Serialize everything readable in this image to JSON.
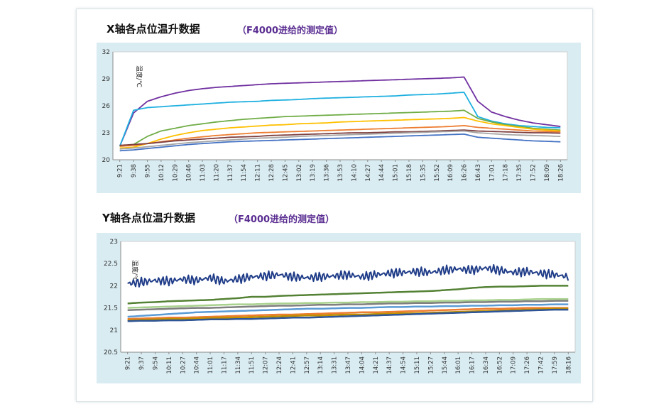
{
  "chart_data": [
    {
      "type": "line",
      "title": "X轴各点位温升数据",
      "subtitle": "（F4000进给的测定值）",
      "ylabel": "温度/℃",
      "xlabel": "",
      "ylim": [
        20,
        32
      ],
      "yticks": [
        "20",
        "23",
        "26",
        "29",
        "32"
      ],
      "grid": false,
      "legend": "none",
      "x": [
        "9:21",
        "9:38",
        "9:55",
        "10:12",
        "10:29",
        "10:46",
        "11:03",
        "11:20",
        "11:37",
        "11:54",
        "12:11",
        "12:28",
        "12:45",
        "13:02",
        "13:19",
        "13:36",
        "13:53",
        "14:10",
        "14:27",
        "14:44",
        "15:01",
        "15:18",
        "15:35",
        "15:52",
        "16:09",
        "16:26",
        "16:43",
        "17:01",
        "17:18",
        "17:35",
        "17:52",
        "18:09",
        "18:26"
      ],
      "series": [
        {
          "color": "#7030a0",
          "values": [
            21.5,
            25.2,
            26.5,
            27.0,
            27.4,
            27.7,
            27.9,
            28.05,
            28.15,
            28.25,
            28.35,
            28.45,
            28.5,
            28.55,
            28.6,
            28.65,
            28.7,
            28.75,
            28.8,
            28.85,
            28.9,
            28.95,
            29.0,
            29.05,
            29.1,
            29.2,
            26.5,
            25.3,
            24.8,
            24.4,
            24.1,
            23.9,
            23.7
          ]
        },
        {
          "color": "#1fb0e0",
          "values": [
            21.5,
            25.5,
            25.8,
            25.9,
            26.0,
            26.1,
            26.2,
            26.3,
            26.4,
            26.45,
            26.5,
            26.6,
            26.65,
            26.7,
            26.8,
            26.85,
            26.9,
            26.95,
            27.0,
            27.05,
            27.1,
            27.2,
            27.25,
            27.3,
            27.4,
            27.5,
            24.8,
            24.3,
            24.0,
            23.8,
            23.7,
            23.6,
            23.55
          ]
        },
        {
          "color": "#70ad47",
          "values": [
            21.5,
            21.7,
            22.6,
            23.2,
            23.5,
            23.8,
            24.0,
            24.2,
            24.35,
            24.5,
            24.6,
            24.7,
            24.8,
            24.85,
            24.9,
            24.95,
            25.0,
            25.05,
            25.1,
            25.15,
            25.2,
            25.25,
            25.3,
            25.35,
            25.4,
            25.5,
            24.6,
            24.2,
            23.9,
            23.7,
            23.5,
            23.4,
            23.3
          ]
        },
        {
          "color": "#ffc000",
          "values": [
            21.3,
            21.4,
            21.8,
            22.3,
            22.7,
            23.0,
            23.25,
            23.4,
            23.55,
            23.65,
            23.75,
            23.85,
            23.9,
            24.0,
            24.05,
            24.1,
            24.2,
            24.25,
            24.3,
            24.35,
            24.4,
            24.45,
            24.5,
            24.55,
            24.6,
            24.7,
            24.3,
            24.0,
            23.8,
            23.6,
            23.4,
            23.3,
            23.2
          ]
        },
        {
          "color": "#ed7d31",
          "values": [
            21.5,
            21.6,
            21.8,
            22.0,
            22.2,
            22.4,
            22.55,
            22.7,
            22.8,
            22.9,
            23.0,
            23.05,
            23.1,
            23.15,
            23.2,
            23.25,
            23.3,
            23.35,
            23.4,
            23.45,
            23.5,
            23.55,
            23.6,
            23.65,
            23.7,
            23.8,
            23.6,
            23.5,
            23.4,
            23.3,
            23.2,
            23.15,
            23.1
          ]
        },
        {
          "color": "#7f3f3f",
          "values": [
            21.6,
            21.7,
            21.8,
            21.95,
            22.1,
            22.2,
            22.3,
            22.4,
            22.5,
            22.55,
            22.6,
            22.7,
            22.75,
            22.8,
            22.85,
            22.9,
            22.95,
            23.0,
            23.0,
            23.05,
            23.1,
            23.1,
            23.15,
            23.2,
            23.25,
            23.3,
            23.2,
            23.15,
            23.1,
            23.05,
            23.0,
            23.0,
            22.95
          ]
        },
        {
          "color": "#a5a5a5",
          "values": [
            21.2,
            21.3,
            21.45,
            21.6,
            21.75,
            21.9,
            22.0,
            22.1,
            22.2,
            22.3,
            22.4,
            22.45,
            22.5,
            22.6,
            22.65,
            22.7,
            22.75,
            22.8,
            22.85,
            22.9,
            22.95,
            23.0,
            23.05,
            23.1,
            23.15,
            23.2,
            23.0,
            22.9,
            22.8,
            22.75,
            22.7,
            22.65,
            22.6
          ]
        },
        {
          "color": "#4472c4",
          "values": [
            21.0,
            21.1,
            21.25,
            21.4,
            21.55,
            21.7,
            21.8,
            21.9,
            22.0,
            22.05,
            22.1,
            22.15,
            22.2,
            22.25,
            22.3,
            22.35,
            22.4,
            22.45,
            22.5,
            22.55,
            22.6,
            22.65,
            22.7,
            22.75,
            22.8,
            22.85,
            22.5,
            22.4,
            22.3,
            22.2,
            22.1,
            22.05,
            22.0
          ]
        }
      ]
    },
    {
      "type": "line",
      "title": "Y轴各点位温升数据",
      "subtitle": "（F4000进给的测定值）",
      "ylabel": "温度/℃",
      "xlabel": "",
      "ylim": [
        20.5,
        23
      ],
      "yticks": [
        "20.5",
        "21",
        "21.5",
        "22",
        "22.5",
        "23"
      ],
      "grid": false,
      "legend": "none",
      "x": [
        "9:21",
        "9:37",
        "9:54",
        "10:11",
        "10:27",
        "10:44",
        "11:01",
        "11:17",
        "11:34",
        "11:51",
        "12:07",
        "12:24",
        "12:41",
        "12:57",
        "13:14",
        "13:31",
        "13:47",
        "14:04",
        "14:21",
        "14:37",
        "14:54",
        "15:11",
        "15:27",
        "15:44",
        "16:01",
        "16:17",
        "16:34",
        "16:52",
        "17:09",
        "17:26",
        "17:42",
        "17:59",
        "18:16"
      ],
      "series": [
        {
          "color": "#1f3c88",
          "values": [
            22.05,
            22.08,
            22.12,
            22.1,
            22.15,
            22.12,
            22.18,
            22.1,
            22.15,
            22.2,
            22.22,
            22.25,
            22.2,
            22.18,
            22.2,
            22.22,
            22.25,
            22.2,
            22.25,
            22.28,
            22.3,
            22.32,
            22.3,
            22.35,
            22.38,
            22.35,
            22.4,
            22.35,
            22.3,
            22.32,
            22.28,
            22.25,
            22.2
          ]
        },
        {
          "color": "#548235",
          "values": [
            21.6,
            21.62,
            21.63,
            21.65,
            21.66,
            21.67,
            21.68,
            21.7,
            21.72,
            21.75,
            21.75,
            21.77,
            21.78,
            21.79,
            21.8,
            21.81,
            21.82,
            21.83,
            21.84,
            21.85,
            21.86,
            21.87,
            21.88,
            21.9,
            21.92,
            21.95,
            21.97,
            21.98,
            21.98,
            21.99,
            22.0,
            22.0,
            22.0
          ]
        },
        {
          "color": "#a9d18e",
          "values": [
            21.5,
            21.51,
            21.52,
            21.53,
            21.54,
            21.55,
            21.56,
            21.57,
            21.58,
            21.58,
            21.59,
            21.6,
            21.6,
            21.61,
            21.61,
            21.62,
            21.62,
            21.63,
            21.63,
            21.64,
            21.64,
            21.65,
            21.65,
            21.66,
            21.66,
            21.67,
            21.67,
            21.68,
            21.68,
            21.69,
            21.7,
            21.7,
            21.7
          ]
        },
        {
          "color": "#7f7f7f",
          "values": [
            21.45,
            21.46,
            21.47,
            21.48,
            21.49,
            21.5,
            21.5,
            21.51,
            21.52,
            21.53,
            21.54,
            21.55,
            21.55,
            21.56,
            21.57,
            21.57,
            21.58,
            21.58,
            21.59,
            21.6,
            21.6,
            21.61,
            21.61,
            21.62,
            21.62,
            21.63,
            21.63,
            21.64,
            21.64,
            21.65,
            21.65,
            21.66,
            21.66
          ]
        },
        {
          "color": "#5b9bd5",
          "values": [
            21.3,
            21.32,
            21.34,
            21.36,
            21.38,
            21.4,
            21.41,
            21.42,
            21.43,
            21.44,
            21.45,
            21.46,
            21.47,
            21.48,
            21.48,
            21.49,
            21.5,
            21.5,
            21.51,
            21.52,
            21.52,
            21.53,
            21.53,
            21.54,
            21.54,
            21.55,
            21.55,
            21.56,
            21.56,
            21.57,
            21.57,
            21.58,
            21.58
          ]
        },
        {
          "color": "#ed7d31",
          "values": [
            21.25,
            21.26,
            21.27,
            21.28,
            21.28,
            21.29,
            21.3,
            21.31,
            21.32,
            21.33,
            21.34,
            21.35,
            21.35,
            21.36,
            21.37,
            21.38,
            21.39,
            21.4,
            21.4,
            21.41,
            21.42,
            21.43,
            21.44,
            21.45,
            21.46,
            21.47,
            21.48,
            21.48,
            21.49,
            21.5,
            21.5,
            21.5,
            21.5
          ]
        },
        {
          "color": "#bf9000",
          "values": [
            21.22,
            21.23,
            21.24,
            21.25,
            21.25,
            21.26,
            21.27,
            21.28,
            21.28,
            21.29,
            21.3,
            21.31,
            21.32,
            21.33,
            21.33,
            21.34,
            21.35,
            21.35,
            21.36,
            21.37,
            21.38,
            21.38,
            21.39,
            21.4,
            21.41,
            21.42,
            21.43,
            21.44,
            21.45,
            21.46,
            21.47,
            21.48,
            21.48
          ]
        },
        {
          "color": "#2e5597",
          "values": [
            21.2,
            21.21,
            21.21,
            21.22,
            21.22,
            21.23,
            21.24,
            21.24,
            21.25,
            21.25,
            21.26,
            21.27,
            21.28,
            21.28,
            21.29,
            21.3,
            21.31,
            21.32,
            21.33,
            21.34,
            21.35,
            21.36,
            21.37,
            21.38,
            21.39,
            21.4,
            21.41,
            21.42,
            21.43,
            21.44,
            21.45,
            21.46,
            21.46
          ]
        }
      ]
    }
  ]
}
